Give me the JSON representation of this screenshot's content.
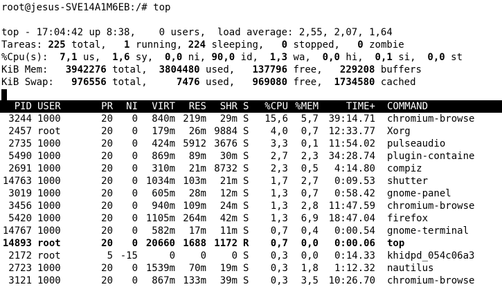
{
  "prompt_line": "root@jesus-SVE14A1M6EB:/# top",
  "summary": {
    "top_line": {
      "label": "top - ",
      "time": "17:04:42",
      "up_label": " up ",
      "uptime": "8:38",
      "users_value": "0",
      "users_label": " users,  load average: ",
      "load": "2,55, 2,07, 1,64"
    },
    "tasks": {
      "label": "Tareas: ",
      "total": "225",
      "total_label": " total,   ",
      "running": "1",
      "running_label": " running, ",
      "sleeping": "224",
      "sleeping_label": " sleeping,   ",
      "stopped": "0",
      "stopped_label": " stopped,   ",
      "zombie": "0",
      "zombie_label": " zombie"
    },
    "cpu": {
      "label": "%Cpu(s):  ",
      "us": "7,1",
      "us_label": " us,  ",
      "sy": "1,6",
      "sy_label": " sy,  ",
      "ni": "0,0",
      "ni_label": " ni, ",
      "id": "90,0",
      "id_label": " id,  ",
      "wa": "1,3",
      "wa_label": " wa,  ",
      "hi": "0,0",
      "hi_label": " hi,  ",
      "si": "0,1",
      "si_label": " si,  ",
      "st": "0,0",
      "st_label": " st"
    },
    "mem": {
      "label": "KiB Mem:   ",
      "total": "3942276",
      "total_label": " total,  ",
      "used": "3804480",
      "used_label": " used,   ",
      "free": "137796",
      "free_label": " free,   ",
      "buffers": "229208",
      "buffers_label": " buffers"
    },
    "swap": {
      "label": "KiB Swap:   ",
      "total": "976556",
      "total_label": " total,     ",
      "used": "7476",
      "used_label": " used,   ",
      "free": "969080",
      "free_label": " free,  ",
      "cached": "1734580",
      "cached_label": " cached"
    }
  },
  "columns": [
    "PID",
    "USER",
    "PR",
    "NI",
    "VIRT",
    "RES",
    "SHR",
    "S",
    "%CPU",
    "%MEM",
    "TIME+",
    "COMMAND"
  ],
  "processes": [
    [
      "3244",
      "1000",
      "20",
      "0",
      "840m",
      "219m",
      "29m",
      "S",
      "15,6",
      "5,7",
      "39:14.71",
      "chromium-browse"
    ],
    [
      "2457",
      "root",
      "20",
      "0",
      "179m",
      "26m",
      "9884",
      "S",
      "4,0",
      "0,7",
      "12:33.77",
      "Xorg"
    ],
    [
      "2735",
      "1000",
      "20",
      "0",
      "424m",
      "5912",
      "3676",
      "S",
      "3,3",
      "0,1",
      "11:54.02",
      "pulseaudio"
    ],
    [
      "5490",
      "1000",
      "20",
      "0",
      "869m",
      "89m",
      "30m",
      "S",
      "2,7",
      "2,3",
      "34:28.74",
      "plugin-containe"
    ],
    [
      "2691",
      "1000",
      "20",
      "0",
      "310m",
      "21m",
      "8732",
      "S",
      "2,3",
      "0,5",
      "4:14.80",
      "compiz"
    ],
    [
      "14763",
      "1000",
      "20",
      "0",
      "1034m",
      "103m",
      "21m",
      "S",
      "1,7",
      "2,7",
      "0:09.53",
      "shutter"
    ],
    [
      "3019",
      "1000",
      "20",
      "0",
      "605m",
      "28m",
      "12m",
      "S",
      "1,3",
      "0,7",
      "0:58.42",
      "gnome-panel"
    ],
    [
      "3456",
      "1000",
      "20",
      "0",
      "940m",
      "109m",
      "24m",
      "S",
      "1,3",
      "2,8",
      "11:47.59",
      "chromium-browse"
    ],
    [
      "5420",
      "1000",
      "20",
      "0",
      "1105m",
      "264m",
      "42m",
      "S",
      "1,3",
      "6,9",
      "18:47.04",
      "firefox"
    ],
    [
      "14767",
      "1000",
      "20",
      "0",
      "582m",
      "17m",
      "11m",
      "S",
      "0,7",
      "0,4",
      "0:00.54",
      "gnome-terminal"
    ],
    [
      "14893",
      "root",
      "20",
      "0",
      "20660",
      "1688",
      "1172",
      "R",
      "0,7",
      "0,0",
      "0:00.06",
      "top"
    ],
    [
      "2172",
      "root",
      "5",
      "-15",
      "0",
      "0",
      "0",
      "S",
      "0,3",
      "0,0",
      "0:14.33",
      "khidpd_054c06a3"
    ],
    [
      "2723",
      "1000",
      "20",
      "0",
      "1539m",
      "70m",
      "19m",
      "S",
      "0,3",
      "1,8",
      "1:12.32",
      "nautilus"
    ],
    [
      "3121",
      "1000",
      "20",
      "0",
      "867m",
      "133m",
      "39m",
      "S",
      "0,3",
      "3,5",
      "10:26.70",
      "chromium-browse"
    ]
  ],
  "bold_row_index": 10,
  "colors": {
    "background": "#ffffff",
    "text": "#000000",
    "header_bg": "#000000",
    "header_text": "#ffffff"
  }
}
